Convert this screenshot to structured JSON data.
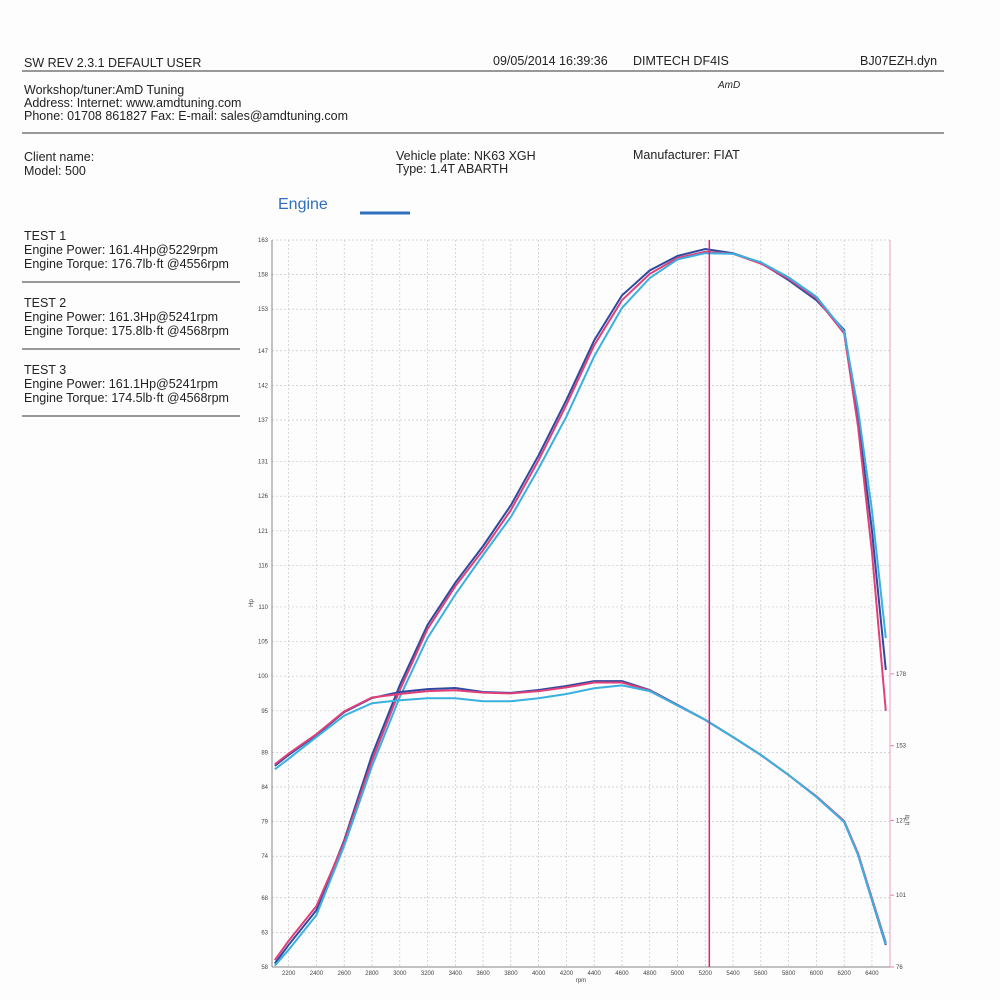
{
  "header": {
    "software": "SW REV 2.3.1  DEFAULT USER",
    "datetime": "09/05/2014 16:39:36",
    "dyno": "DIMTECH DF4IS",
    "file": "BJ07EZH.dyn",
    "workshop": "Workshop/tuner:AmD Tuning",
    "address": "Address:  Internet: www.amdtuning.com",
    "phone": "Phone: 01708 861827 Fax:  E-mail: sales@amdtuning.com",
    "logo": "AmD"
  },
  "client": {
    "name": "Client name:",
    "model": "Model: 500",
    "plate": "Vehicle plate: NK63 XGH",
    "type": "Type: 1.4T ABARTH",
    "manufacturer": "Manufacturer: FIAT"
  },
  "tests": [
    {
      "title": "TEST 1",
      "power": "Engine Power: 161.4Hp@5229rpm",
      "torque": "Engine Torque: 176.7lb·ft @4556rpm"
    },
    {
      "title": "TEST 2",
      "power": "Engine Power: 161.3Hp@5241rpm",
      "torque": "Engine Torque: 175.8lb·ft @4568rpm"
    },
    {
      "title": "TEST 3",
      "power": "Engine Power: 161.1Hp@5241rpm",
      "torque": "Engine Torque: 174.5lb·ft @4568rpm"
    }
  ],
  "chart_data": {
    "type": "line",
    "legend": "Engine",
    "legend_color": "#2e6fc0",
    "x_label": "rpm",
    "y_label": "Hp",
    "y2_label": "lb·ft",
    "x": [
      2100,
      2200,
      2400,
      2600,
      2800,
      3000,
      3200,
      3400,
      3600,
      3800,
      4000,
      4200,
      4400,
      4600,
      4800,
      5000,
      5200,
      5400,
      5600,
      5800,
      6000,
      6200,
      6300,
      6400,
      6500
    ],
    "xlim": [
      2080,
      6530
    ],
    "xticks": [
      2200,
      2400,
      2600,
      2800,
      3000,
      3200,
      3400,
      3600,
      3800,
      4000,
      4200,
      4400,
      4600,
      4800,
      5000,
      5200,
      5400,
      5600,
      5800,
      6000,
      6200,
      6400
    ],
    "ylim": [
      58,
      163
    ],
    "yticks": [
      58,
      63,
      68,
      74,
      79,
      84,
      89,
      95,
      100,
      105,
      110,
      116,
      121,
      126,
      131,
      137,
      142,
      147,
      153,
      158,
      163
    ],
    "y2lim": [
      76,
      329
    ],
    "y2ticks": [
      76,
      101,
      127,
      153,
      178
    ],
    "grid": true,
    "marker_x": 5229,
    "marker_color": "#e0207a",
    "series": [
      {
        "color": "#2e4aa0",
        "values": [
          58.5,
          61.2,
          66.2,
          76.3,
          88.6,
          98.7,
          107.4,
          113.5,
          118.8,
          124.7,
          131.9,
          139.9,
          148.5,
          155.0,
          158.6,
          160.7,
          161.7,
          161.1,
          159.7,
          157.2,
          154.3,
          150.0,
          137.0,
          121.1,
          100.9
        ]
      },
      {
        "color": "#e0407a",
        "values": [
          59.0,
          61.8,
          66.8,
          76.0,
          87.8,
          98.0,
          106.8,
          113.0,
          118.2,
          124.0,
          131.2,
          139.2,
          147.8,
          154.3,
          158.1,
          160.4,
          161.3,
          161.0,
          159.6,
          157.4,
          154.6,
          149.5,
          136.0,
          118.0,
          95.0
        ]
      },
      {
        "color": "#3ab0e0",
        "values": [
          58.2,
          60.5,
          65.5,
          75.5,
          87.0,
          97.0,
          105.5,
          111.8,
          117.5,
          123.0,
          130.0,
          137.5,
          146.2,
          153.2,
          157.5,
          160.2,
          161.1,
          161.0,
          159.8,
          157.6,
          154.8,
          149.8,
          138.5,
          124.0,
          105.5
        ]
      },
      {
        "color": "#2e4aa0",
        "axis": "y2",
        "values": [
          146.0,
          149.8,
          156.7,
          164.7,
          169.6,
          171.7,
          172.7,
          173.1,
          171.7,
          171.4,
          172.4,
          173.8,
          175.5,
          175.5,
          172.4,
          167.2,
          162.0,
          156.0,
          149.8,
          142.8,
          135.2,
          126.5,
          115.0,
          99.3,
          83.7
        ]
      },
      {
        "color": "#e0407a",
        "axis": "y2",
        "values": [
          146.5,
          150.3,
          157.0,
          165.0,
          169.8,
          171.0,
          172.0,
          172.3,
          171.5,
          171.2,
          172.0,
          173.3,
          175.0,
          175.0,
          172.2,
          167.0,
          162.0,
          156.0,
          149.8,
          142.8,
          135.4,
          126.8,
          115.5,
          100.0,
          84.5
        ]
      },
      {
        "color": "#3ab0e0",
        "axis": "y2",
        "values": [
          144.8,
          148.5,
          156.0,
          163.5,
          167.8,
          168.8,
          169.5,
          169.5,
          168.5,
          168.5,
          169.5,
          171.0,
          173.0,
          174.0,
          172.0,
          167.0,
          162.0,
          156.0,
          149.8,
          142.8,
          135.2,
          126.5,
          115.0,
          99.5,
          84.0
        ]
      }
    ]
  }
}
